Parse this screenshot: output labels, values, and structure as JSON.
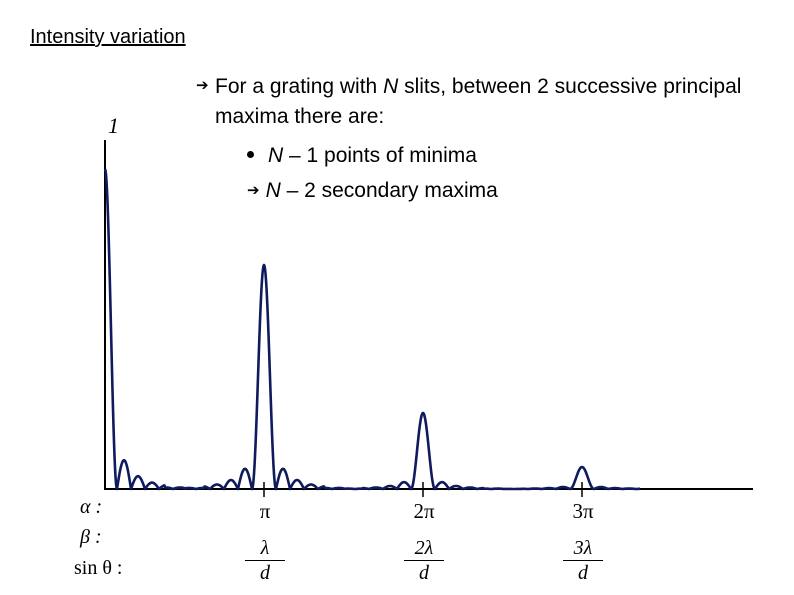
{
  "title": "Intensity variation",
  "bullets": {
    "main_prefix": "For a grating with ",
    "main_N": "N",
    "main_suffix": " slits, between 2 successive principal maxima there are:",
    "minima_N": "N",
    "minima_text": " – 1 points of minima",
    "secondary_N": "N",
    "secondary_text": " – 2 secondary maxima"
  },
  "y_label": "1",
  "row_labels": {
    "alpha": "α :",
    "beta": "β :",
    "sin": "sin θ :"
  },
  "ticks": [
    {
      "label": "π",
      "num": "λ",
      "den": "d"
    },
    {
      "label": "2π",
      "num": "2λ",
      "den": "d"
    },
    {
      "label": "3π",
      "num": "3λ",
      "den": "d"
    }
  ],
  "colors": {
    "curve": "#0f1b5c",
    "axis": "#000000"
  },
  "icons": {
    "bullet_arrow": "right-arrow-icon",
    "bullet_dot": "filled-circle-icon"
  }
}
